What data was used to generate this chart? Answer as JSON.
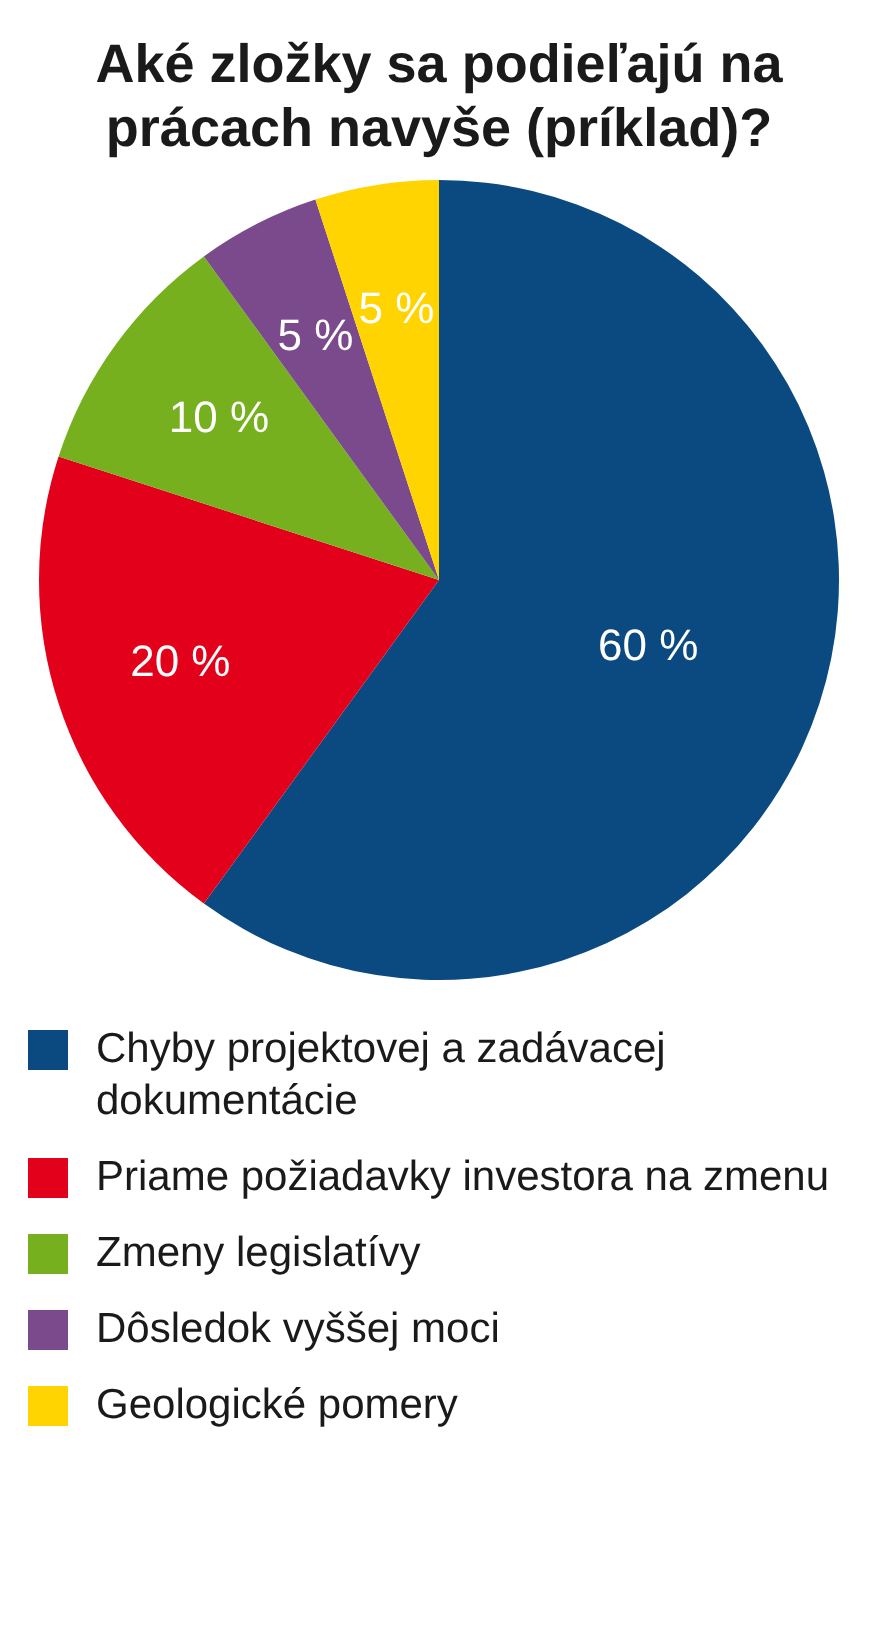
{
  "chart_data": {
    "type": "pie",
    "title": "Aké zložky sa podieľajú na prácach navyše (príklad)?",
    "categories": [
      "Chyby projektovej a zadávacej dokumentácie",
      "Priame požiadavky investora na zmenu",
      "Zmeny legislatívy",
      "Dôsledok vyššej moci",
      "Geologické pomery"
    ],
    "values": [
      60,
      20,
      10,
      5,
      5
    ],
    "colors": [
      "#0b4a80",
      "#e2001a",
      "#77b01f",
      "#7b4a8c",
      "#ffd400"
    ],
    "value_labels": [
      "60 %",
      "20 %",
      "10 %",
      "5 %",
      "5 %"
    ],
    "legend": "bottom"
  }
}
